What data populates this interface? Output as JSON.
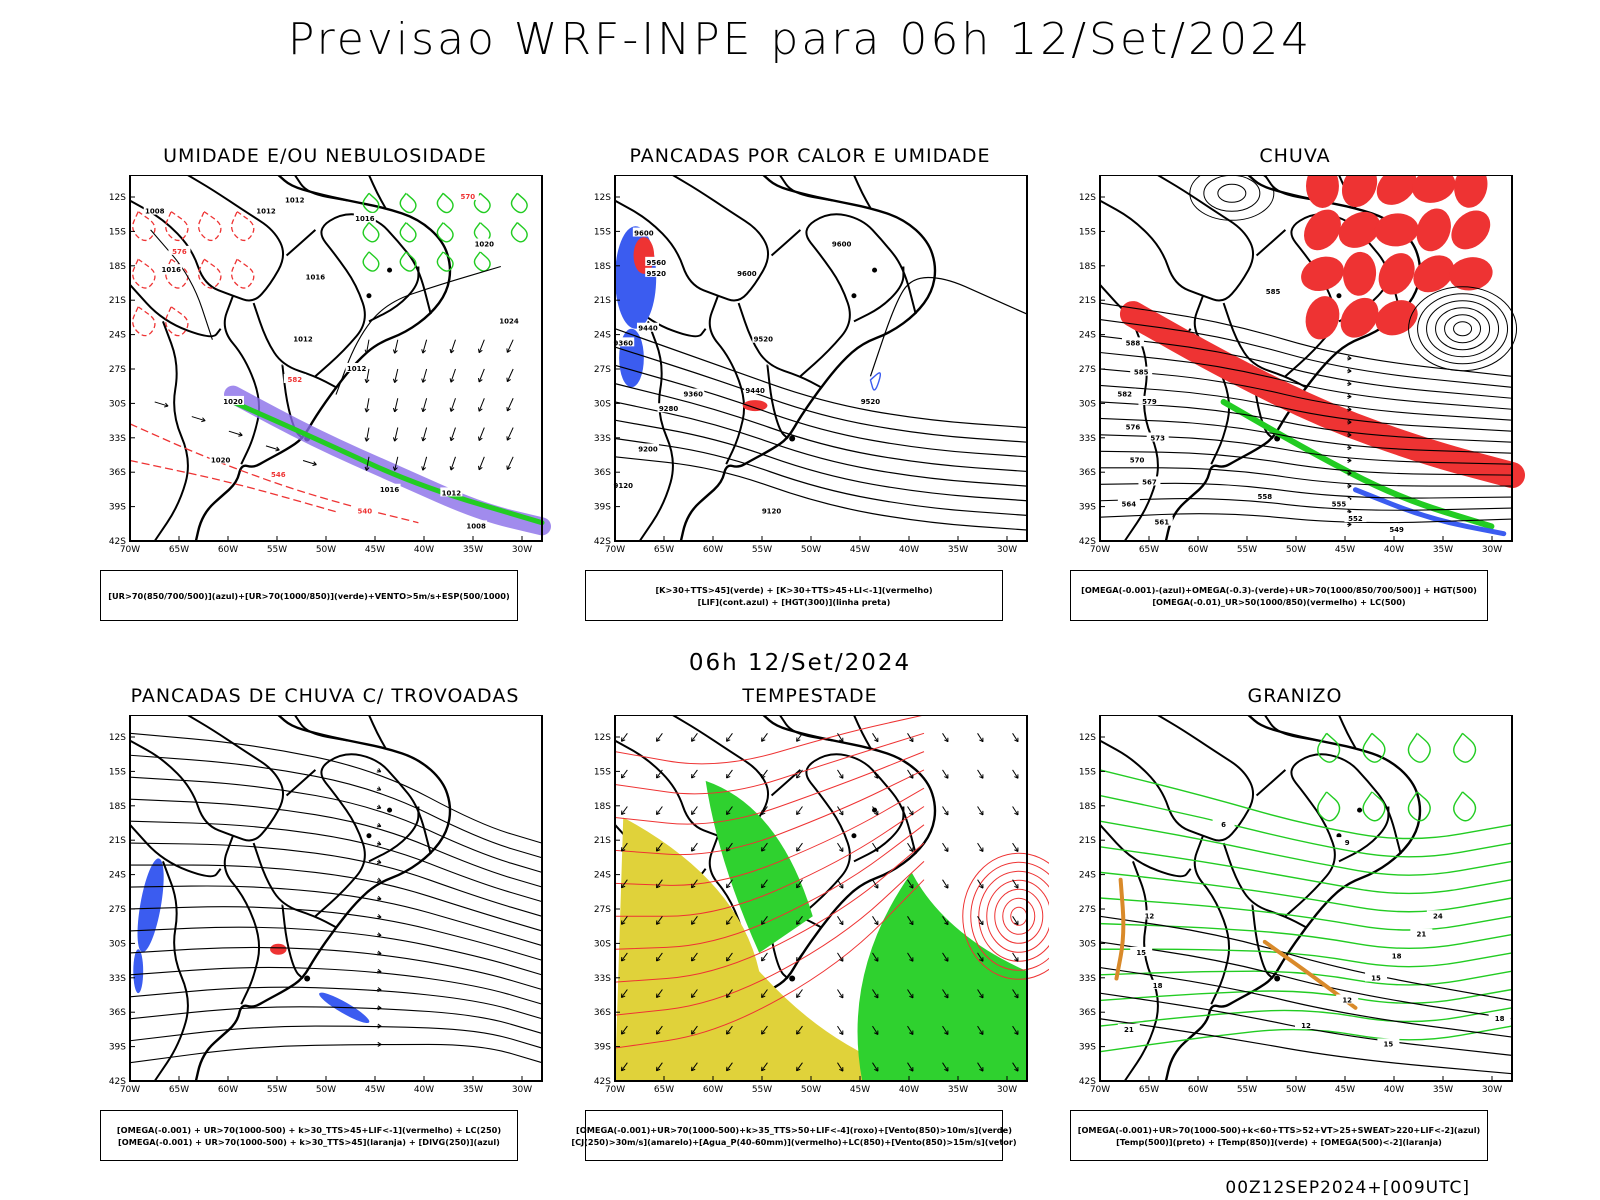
{
  "header": {
    "title": "Previsao WRF-INPE  para 06h 12/Set/2024"
  },
  "middle": {
    "title": "06h 12/Set/2024"
  },
  "footer": {
    "stamp": "00Z12SEP2024+[009UTC]"
  },
  "axes": {
    "lat_labels": [
      "12S",
      "15S",
      "18S",
      "21S",
      "24S",
      "27S",
      "30S",
      "33S",
      "36S",
      "39S",
      "42S"
    ],
    "lon_labels": [
      "70W",
      "65W",
      "60W",
      "55W",
      "50W",
      "45W",
      "40W",
      "35W",
      "30W"
    ]
  },
  "panels": [
    {
      "title": "UMIDADE E/OU NEBULOSIDADE",
      "legend": [
        "[UR>70(850/700/500)](azul)+[UR>70(1000/850)](verde)+VENTO>5m/s+ESP(500/1000)"
      ],
      "contour_labels": [
        "1008",
        "1012",
        "1012",
        "1016",
        "1016",
        "1020",
        "1024",
        "1012",
        "1012",
        "1016",
        "1020",
        "1020",
        "1016",
        "1012",
        "1008",
        "570",
        "576",
        "582",
        "546",
        "540"
      ]
    },
    {
      "title": "PANCADAS POR CALOR E UMIDADE",
      "legend": [
        "[K>30+TTS>45](verde) + [K>30+TTS>45+LI<-1](vermelho)",
        "[LIF](cont.azul) + [HGT(300)](linha preta)"
      ],
      "contour_labels": [
        "9600",
        "9560",
        "9520",
        "9600",
        "9600",
        "9520",
        "9440",
        "9360",
        "9440",
        "9360",
        "9280",
        "9520",
        "9200",
        "9120",
        "9120"
      ]
    },
    {
      "title": "CHUVA",
      "legend": [
        "[OMEGA(-0.001)-(azul)+OMEGA(-0.3)-(verde)+UR>70(1000/850/700/500)] + HGT(500)",
        "[OMEGA(-0.01)_UR>50(1000/850)(vermelho) + LC(500)"
      ],
      "contour_labels": [
        "588",
        "585",
        "582",
        "579",
        "576",
        "573",
        "570",
        "567",
        "564",
        "561",
        "558",
        "555",
        "552",
        "549",
        "585"
      ]
    },
    {
      "title": "PANCADAS DE CHUVA C/ TROVOADAS",
      "legend": [
        "[OMEGA(-0.001) + UR>70(1000-500) + k>30_TTS>45+LIF<-1](vermelho) + LC(250)",
        "[OMEGA(-0.001) + UR>70(1000-500) + k>30_TTS>45](laranja) + [DIVG(250)](azul)"
      ],
      "contour_labels": []
    },
    {
      "title": "TEMPESTADE",
      "legend": [
        "[OMEGA(-0.001)+UR>70(1000-500)+k>35_TTS>50+LIF<-4](roxo)+[Vento(850)>10m/s](verde)",
        "[CJ(250)>30m/s](amarelo)+[Agua_P(40-60mm)](vermelho)+LC(850)+[Vento(850)>15m/s](vetor)"
      ],
      "contour_labels": []
    },
    {
      "title": "GRANIZO",
      "legend": [
        "[OMEGA(-0.001)+UR>70(1000-500)+k<60+TTS>52+VT>25+SWEAT>220+LIF<-2](azul)",
        "[Temp(500)](preto) + [Temp(850)](verde) + [OMEGA(500)<-2](laranja)"
      ],
      "contour_labels": [
        "6",
        "9",
        "12",
        "15",
        "18",
        "21",
        "12",
        "15",
        "18",
        "21",
        "24",
        "12",
        "15",
        "18"
      ]
    }
  ],
  "colors": {
    "blue": "#3b5cf0",
    "green": "#22cc22",
    "red": "#ee3333",
    "yellow": "#e0d23a",
    "orange": "#d98a2a",
    "purple": "#8a6ee8"
  }
}
